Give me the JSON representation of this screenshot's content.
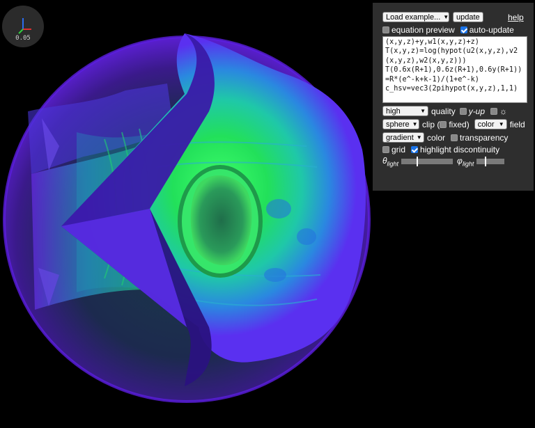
{
  "axes_widget": {
    "scale_label": "0.05"
  },
  "panel": {
    "load_example_label": "Load example...",
    "update_label": "update",
    "help_label": "help",
    "equation_preview": {
      "label": "equation preview",
      "checked": false
    },
    "auto_update": {
      "label": "auto-update",
      "checked": true
    },
    "equation_text": "(x,y,z)+y,w1(x,y,z)+z)\nT(x,y,z)=log(hypot(u2(x,y,z),v2(x,y,z),w2(x,y,z)))\nT(0.6x(R+1),0.6z(R+1),0.6y(R+1))=R*(e^-k+k-1)/(1+e^-k)\nc_hsv=vec3(2pihypot(x,y,z),1,1)",
    "quality_select": "high",
    "quality_label": "quality",
    "y_up": {
      "label": "y-up",
      "checked": false
    },
    "light_toggle": {
      "icon": "sun-icon",
      "glyph": "☼",
      "checked": false
    },
    "clip_select": "sphere",
    "clip_label": "clip (",
    "fixed": {
      "label": "fixed)",
      "checked": false
    },
    "field_select": "color",
    "field_label": "field",
    "color_select": "gradient",
    "color_label": "color",
    "transparency": {
      "label": "transparency",
      "checked": false
    },
    "grid": {
      "label": "grid",
      "checked": false
    },
    "highlight_discontinuity": {
      "label": "highlight discontinuity",
      "checked": true
    },
    "theta_light": {
      "symbol": "θ",
      "sub": "light",
      "value": 0.3
    },
    "phi_light": {
      "symbol": "φ",
      "sub": "light",
      "value": 0.3
    }
  },
  "colors": {
    "background": "#000000",
    "panel": "#2e2e2e",
    "surface_green": "#22e05a",
    "surface_cyan": "#1fb6c8",
    "surface_violet": "#6b2bf0"
  }
}
